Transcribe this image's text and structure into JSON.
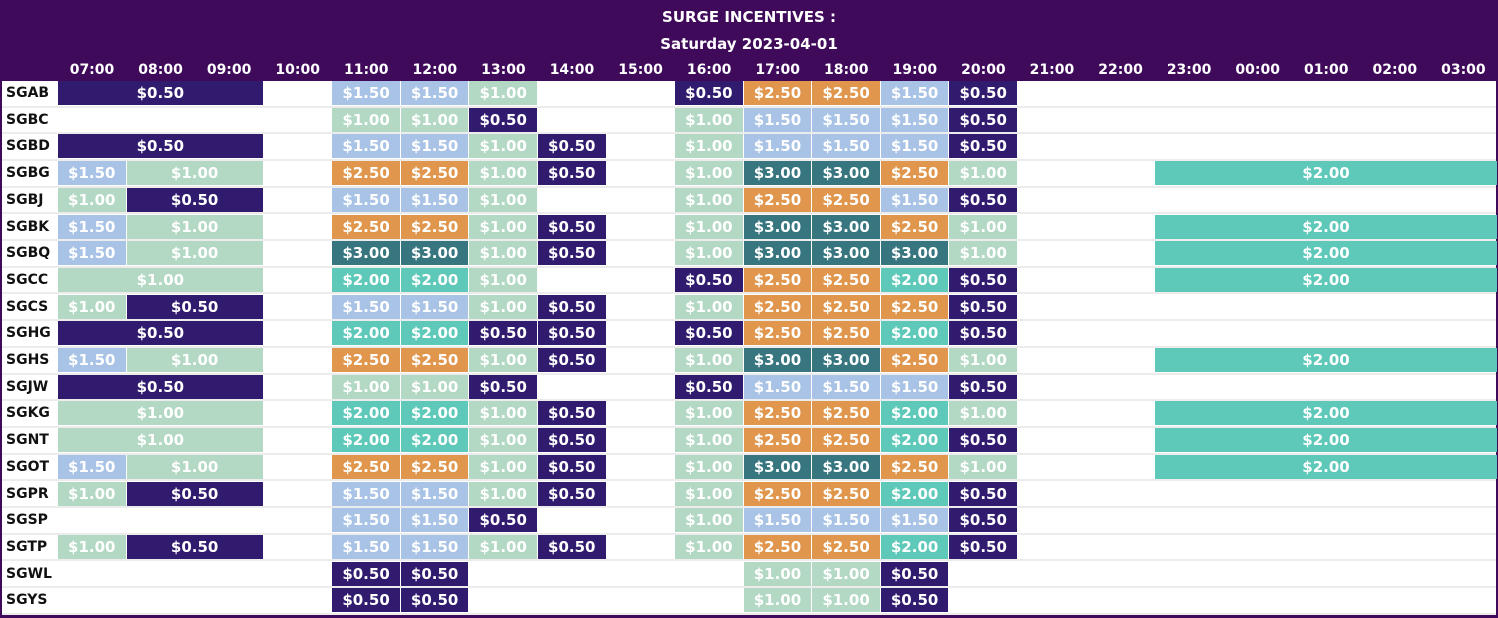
{
  "header": {
    "title": "SURGE INCENTIVES :",
    "subtitle": "Saturday 2023-04-01"
  },
  "hours": [
    "07:00",
    "08:00",
    "09:00",
    "10:00",
    "11:00",
    "12:00",
    "13:00",
    "14:00",
    "15:00",
    "16:00",
    "17:00",
    "18:00",
    "19:00",
    "20:00",
    "21:00",
    "22:00",
    "23:00",
    "00:00",
    "01:00",
    "02:00",
    "03:00"
  ],
  "value_colors": {
    "$0.50": "#311b6e",
    "$1.00": "#b3d8c4",
    "$1.50": "#a8c3e5",
    "$2.00": "#5ec9b9",
    "$2.50": "#e0964c",
    "$3.00": "#37767f"
  },
  "rows": [
    {
      "station": "SGAB",
      "segments": [
        [
          "07:00",
          "09:00",
          "$0.50"
        ],
        [
          "11:00",
          "11:00",
          "$1.50"
        ],
        [
          "12:00",
          "12:00",
          "$1.50"
        ],
        [
          "13:00",
          "13:00",
          "$1.00"
        ],
        [
          "16:00",
          "16:00",
          "$0.50"
        ],
        [
          "17:00",
          "17:00",
          "$2.50"
        ],
        [
          "18:00",
          "18:00",
          "$2.50"
        ],
        [
          "19:00",
          "19:00",
          "$1.50"
        ],
        [
          "20:00",
          "20:00",
          "$0.50"
        ]
      ]
    },
    {
      "station": "SGBC",
      "segments": [
        [
          "11:00",
          "11:00",
          "$1.00"
        ],
        [
          "12:00",
          "12:00",
          "$1.00"
        ],
        [
          "13:00",
          "13:00",
          "$0.50"
        ],
        [
          "16:00",
          "16:00",
          "$1.00"
        ],
        [
          "17:00",
          "17:00",
          "$1.50"
        ],
        [
          "18:00",
          "18:00",
          "$1.50"
        ],
        [
          "19:00",
          "19:00",
          "$1.50"
        ],
        [
          "20:00",
          "20:00",
          "$0.50"
        ]
      ]
    },
    {
      "station": "SGBD",
      "segments": [
        [
          "07:00",
          "09:00",
          "$0.50"
        ],
        [
          "11:00",
          "11:00",
          "$1.50"
        ],
        [
          "12:00",
          "12:00",
          "$1.50"
        ],
        [
          "13:00",
          "13:00",
          "$1.00"
        ],
        [
          "14:00",
          "14:00",
          "$0.50"
        ],
        [
          "16:00",
          "16:00",
          "$1.00"
        ],
        [
          "17:00",
          "17:00",
          "$1.50"
        ],
        [
          "18:00",
          "18:00",
          "$1.50"
        ],
        [
          "19:00",
          "19:00",
          "$1.50"
        ],
        [
          "20:00",
          "20:00",
          "$0.50"
        ]
      ]
    },
    {
      "station": "SGBG",
      "segments": [
        [
          "07:00",
          "07:00",
          "$1.50"
        ],
        [
          "08:00",
          "09:00",
          "$1.00"
        ],
        [
          "11:00",
          "11:00",
          "$2.50"
        ],
        [
          "12:00",
          "12:00",
          "$2.50"
        ],
        [
          "13:00",
          "13:00",
          "$1.00"
        ],
        [
          "14:00",
          "14:00",
          "$0.50"
        ],
        [
          "16:00",
          "16:00",
          "$1.00"
        ],
        [
          "17:00",
          "17:00",
          "$3.00"
        ],
        [
          "18:00",
          "18:00",
          "$3.00"
        ],
        [
          "19:00",
          "19:00",
          "$2.50"
        ],
        [
          "20:00",
          "20:00",
          "$1.00"
        ],
        [
          "23:00",
          "03:00",
          "$2.00"
        ]
      ]
    },
    {
      "station": "SGBJ",
      "segments": [
        [
          "07:00",
          "07:00",
          "$1.00"
        ],
        [
          "08:00",
          "09:00",
          "$0.50"
        ],
        [
          "11:00",
          "11:00",
          "$1.50"
        ],
        [
          "12:00",
          "12:00",
          "$1.50"
        ],
        [
          "13:00",
          "13:00",
          "$1.00"
        ],
        [
          "16:00",
          "16:00",
          "$1.00"
        ],
        [
          "17:00",
          "17:00",
          "$2.50"
        ],
        [
          "18:00",
          "18:00",
          "$2.50"
        ],
        [
          "19:00",
          "19:00",
          "$1.50"
        ],
        [
          "20:00",
          "20:00",
          "$0.50"
        ]
      ]
    },
    {
      "station": "SGBK",
      "segments": [
        [
          "07:00",
          "07:00",
          "$1.50"
        ],
        [
          "08:00",
          "09:00",
          "$1.00"
        ],
        [
          "11:00",
          "11:00",
          "$2.50"
        ],
        [
          "12:00",
          "12:00",
          "$2.50"
        ],
        [
          "13:00",
          "13:00",
          "$1.00"
        ],
        [
          "14:00",
          "14:00",
          "$0.50"
        ],
        [
          "16:00",
          "16:00",
          "$1.00"
        ],
        [
          "17:00",
          "17:00",
          "$3.00"
        ],
        [
          "18:00",
          "18:00",
          "$3.00"
        ],
        [
          "19:00",
          "19:00",
          "$2.50"
        ],
        [
          "20:00",
          "20:00",
          "$1.00"
        ],
        [
          "23:00",
          "03:00",
          "$2.00"
        ]
      ]
    },
    {
      "station": "SGBQ",
      "segments": [
        [
          "07:00",
          "07:00",
          "$1.50"
        ],
        [
          "08:00",
          "09:00",
          "$1.00"
        ],
        [
          "11:00",
          "11:00",
          "$3.00"
        ],
        [
          "12:00",
          "12:00",
          "$3.00"
        ],
        [
          "13:00",
          "13:00",
          "$1.00"
        ],
        [
          "14:00",
          "14:00",
          "$0.50"
        ],
        [
          "16:00",
          "16:00",
          "$1.00"
        ],
        [
          "17:00",
          "17:00",
          "$3.00"
        ],
        [
          "18:00",
          "18:00",
          "$3.00"
        ],
        [
          "19:00",
          "19:00",
          "$3.00"
        ],
        [
          "20:00",
          "20:00",
          "$1.00"
        ],
        [
          "23:00",
          "03:00",
          "$2.00"
        ]
      ]
    },
    {
      "station": "SGCC",
      "segments": [
        [
          "07:00",
          "09:00",
          "$1.00"
        ],
        [
          "11:00",
          "11:00",
          "$2.00"
        ],
        [
          "12:00",
          "12:00",
          "$2.00"
        ],
        [
          "13:00",
          "13:00",
          "$1.00"
        ],
        [
          "16:00",
          "16:00",
          "$0.50"
        ],
        [
          "17:00",
          "17:00",
          "$2.50"
        ],
        [
          "18:00",
          "18:00",
          "$2.50"
        ],
        [
          "19:00",
          "19:00",
          "$2.00"
        ],
        [
          "20:00",
          "20:00",
          "$0.50"
        ],
        [
          "23:00",
          "03:00",
          "$2.00"
        ]
      ]
    },
    {
      "station": "SGCS",
      "segments": [
        [
          "07:00",
          "07:00",
          "$1.00"
        ],
        [
          "08:00",
          "09:00",
          "$0.50"
        ],
        [
          "11:00",
          "11:00",
          "$1.50"
        ],
        [
          "12:00",
          "12:00",
          "$1.50"
        ],
        [
          "13:00",
          "13:00",
          "$1.00"
        ],
        [
          "14:00",
          "14:00",
          "$0.50"
        ],
        [
          "16:00",
          "16:00",
          "$1.00"
        ],
        [
          "17:00",
          "17:00",
          "$2.50"
        ],
        [
          "18:00",
          "18:00",
          "$2.50"
        ],
        [
          "19:00",
          "19:00",
          "$2.50"
        ],
        [
          "20:00",
          "20:00",
          "$0.50"
        ]
      ]
    },
    {
      "station": "SGHG",
      "segments": [
        [
          "07:00",
          "09:00",
          "$0.50"
        ],
        [
          "11:00",
          "11:00",
          "$2.00"
        ],
        [
          "12:00",
          "12:00",
          "$2.00"
        ],
        [
          "13:00",
          "13:00",
          "$0.50"
        ],
        [
          "14:00",
          "14:00",
          "$0.50"
        ],
        [
          "16:00",
          "16:00",
          "$0.50"
        ],
        [
          "17:00",
          "17:00",
          "$2.50"
        ],
        [
          "18:00",
          "18:00",
          "$2.50"
        ],
        [
          "19:00",
          "19:00",
          "$2.00"
        ],
        [
          "20:00",
          "20:00",
          "$0.50"
        ]
      ]
    },
    {
      "station": "SGHS",
      "segments": [
        [
          "07:00",
          "07:00",
          "$1.50"
        ],
        [
          "08:00",
          "09:00",
          "$1.00"
        ],
        [
          "11:00",
          "11:00",
          "$2.50"
        ],
        [
          "12:00",
          "12:00",
          "$2.50"
        ],
        [
          "13:00",
          "13:00",
          "$1.00"
        ],
        [
          "14:00",
          "14:00",
          "$0.50"
        ],
        [
          "16:00",
          "16:00",
          "$1.00"
        ],
        [
          "17:00",
          "17:00",
          "$3.00"
        ],
        [
          "18:00",
          "18:00",
          "$3.00"
        ],
        [
          "19:00",
          "19:00",
          "$2.50"
        ],
        [
          "20:00",
          "20:00",
          "$1.00"
        ],
        [
          "23:00",
          "03:00",
          "$2.00"
        ]
      ]
    },
    {
      "station": "SGJW",
      "segments": [
        [
          "07:00",
          "09:00",
          "$0.50"
        ],
        [
          "11:00",
          "11:00",
          "$1.00"
        ],
        [
          "12:00",
          "12:00",
          "$1.00"
        ],
        [
          "13:00",
          "13:00",
          "$0.50"
        ],
        [
          "16:00",
          "16:00",
          "$0.50"
        ],
        [
          "17:00",
          "17:00",
          "$1.50"
        ],
        [
          "18:00",
          "18:00",
          "$1.50"
        ],
        [
          "19:00",
          "19:00",
          "$1.50"
        ],
        [
          "20:00",
          "20:00",
          "$0.50"
        ]
      ]
    },
    {
      "station": "SGKG",
      "segments": [
        [
          "07:00",
          "09:00",
          "$1.00"
        ],
        [
          "11:00",
          "11:00",
          "$2.00"
        ],
        [
          "12:00",
          "12:00",
          "$2.00"
        ],
        [
          "13:00",
          "13:00",
          "$1.00"
        ],
        [
          "14:00",
          "14:00",
          "$0.50"
        ],
        [
          "16:00",
          "16:00",
          "$1.00"
        ],
        [
          "17:00",
          "17:00",
          "$2.50"
        ],
        [
          "18:00",
          "18:00",
          "$2.50"
        ],
        [
          "19:00",
          "19:00",
          "$2.00"
        ],
        [
          "20:00",
          "20:00",
          "$1.00"
        ],
        [
          "23:00",
          "03:00",
          "$2.00"
        ]
      ]
    },
    {
      "station": "SGNT",
      "segments": [
        [
          "07:00",
          "09:00",
          "$1.00"
        ],
        [
          "11:00",
          "11:00",
          "$2.00"
        ],
        [
          "12:00",
          "12:00",
          "$2.00"
        ],
        [
          "13:00",
          "13:00",
          "$1.00"
        ],
        [
          "14:00",
          "14:00",
          "$0.50"
        ],
        [
          "16:00",
          "16:00",
          "$1.00"
        ],
        [
          "17:00",
          "17:00",
          "$2.50"
        ],
        [
          "18:00",
          "18:00",
          "$2.50"
        ],
        [
          "19:00",
          "19:00",
          "$2.00"
        ],
        [
          "20:00",
          "20:00",
          "$0.50"
        ],
        [
          "23:00",
          "03:00",
          "$2.00"
        ]
      ]
    },
    {
      "station": "SGOT",
      "segments": [
        [
          "07:00",
          "07:00",
          "$1.50"
        ],
        [
          "08:00",
          "09:00",
          "$1.00"
        ],
        [
          "11:00",
          "11:00",
          "$2.50"
        ],
        [
          "12:00",
          "12:00",
          "$2.50"
        ],
        [
          "13:00",
          "13:00",
          "$1.00"
        ],
        [
          "14:00",
          "14:00",
          "$0.50"
        ],
        [
          "16:00",
          "16:00",
          "$1.00"
        ],
        [
          "17:00",
          "17:00",
          "$3.00"
        ],
        [
          "18:00",
          "18:00",
          "$3.00"
        ],
        [
          "19:00",
          "19:00",
          "$2.50"
        ],
        [
          "20:00",
          "20:00",
          "$1.00"
        ],
        [
          "23:00",
          "03:00",
          "$2.00"
        ]
      ]
    },
    {
      "station": "SGPR",
      "segments": [
        [
          "07:00",
          "07:00",
          "$1.00"
        ],
        [
          "08:00",
          "09:00",
          "$0.50"
        ],
        [
          "11:00",
          "11:00",
          "$1.50"
        ],
        [
          "12:00",
          "12:00",
          "$1.50"
        ],
        [
          "13:00",
          "13:00",
          "$1.00"
        ],
        [
          "14:00",
          "14:00",
          "$0.50"
        ],
        [
          "16:00",
          "16:00",
          "$1.00"
        ],
        [
          "17:00",
          "17:00",
          "$2.50"
        ],
        [
          "18:00",
          "18:00",
          "$2.50"
        ],
        [
          "19:00",
          "19:00",
          "$2.00"
        ],
        [
          "20:00",
          "20:00",
          "$0.50"
        ]
      ]
    },
    {
      "station": "SGSP",
      "segments": [
        [
          "11:00",
          "11:00",
          "$1.50"
        ],
        [
          "12:00",
          "12:00",
          "$1.50"
        ],
        [
          "13:00",
          "13:00",
          "$0.50"
        ],
        [
          "16:00",
          "16:00",
          "$1.00"
        ],
        [
          "17:00",
          "17:00",
          "$1.50"
        ],
        [
          "18:00",
          "18:00",
          "$1.50"
        ],
        [
          "19:00",
          "19:00",
          "$1.50"
        ],
        [
          "20:00",
          "20:00",
          "$0.50"
        ]
      ]
    },
    {
      "station": "SGTP",
      "segments": [
        [
          "07:00",
          "07:00",
          "$1.00"
        ],
        [
          "08:00",
          "09:00",
          "$0.50"
        ],
        [
          "11:00",
          "11:00",
          "$1.50"
        ],
        [
          "12:00",
          "12:00",
          "$1.50"
        ],
        [
          "13:00",
          "13:00",
          "$1.00"
        ],
        [
          "14:00",
          "14:00",
          "$0.50"
        ],
        [
          "16:00",
          "16:00",
          "$1.00"
        ],
        [
          "17:00",
          "17:00",
          "$2.50"
        ],
        [
          "18:00",
          "18:00",
          "$2.50"
        ],
        [
          "19:00",
          "19:00",
          "$2.00"
        ],
        [
          "20:00",
          "20:00",
          "$0.50"
        ]
      ]
    },
    {
      "station": "SGWL",
      "segments": [
        [
          "11:00",
          "11:00",
          "$0.50"
        ],
        [
          "12:00",
          "12:00",
          "$0.50"
        ],
        [
          "17:00",
          "17:00",
          "$1.00"
        ],
        [
          "18:00",
          "18:00",
          "$1.00"
        ],
        [
          "19:00",
          "19:00",
          "$0.50"
        ]
      ]
    },
    {
      "station": "SGYS",
      "segments": [
        [
          "11:00",
          "11:00",
          "$0.50"
        ],
        [
          "12:00",
          "12:00",
          "$0.50"
        ],
        [
          "17:00",
          "17:00",
          "$1.00"
        ],
        [
          "18:00",
          "18:00",
          "$1.00"
        ],
        [
          "19:00",
          "19:00",
          "$0.50"
        ]
      ]
    }
  ]
}
